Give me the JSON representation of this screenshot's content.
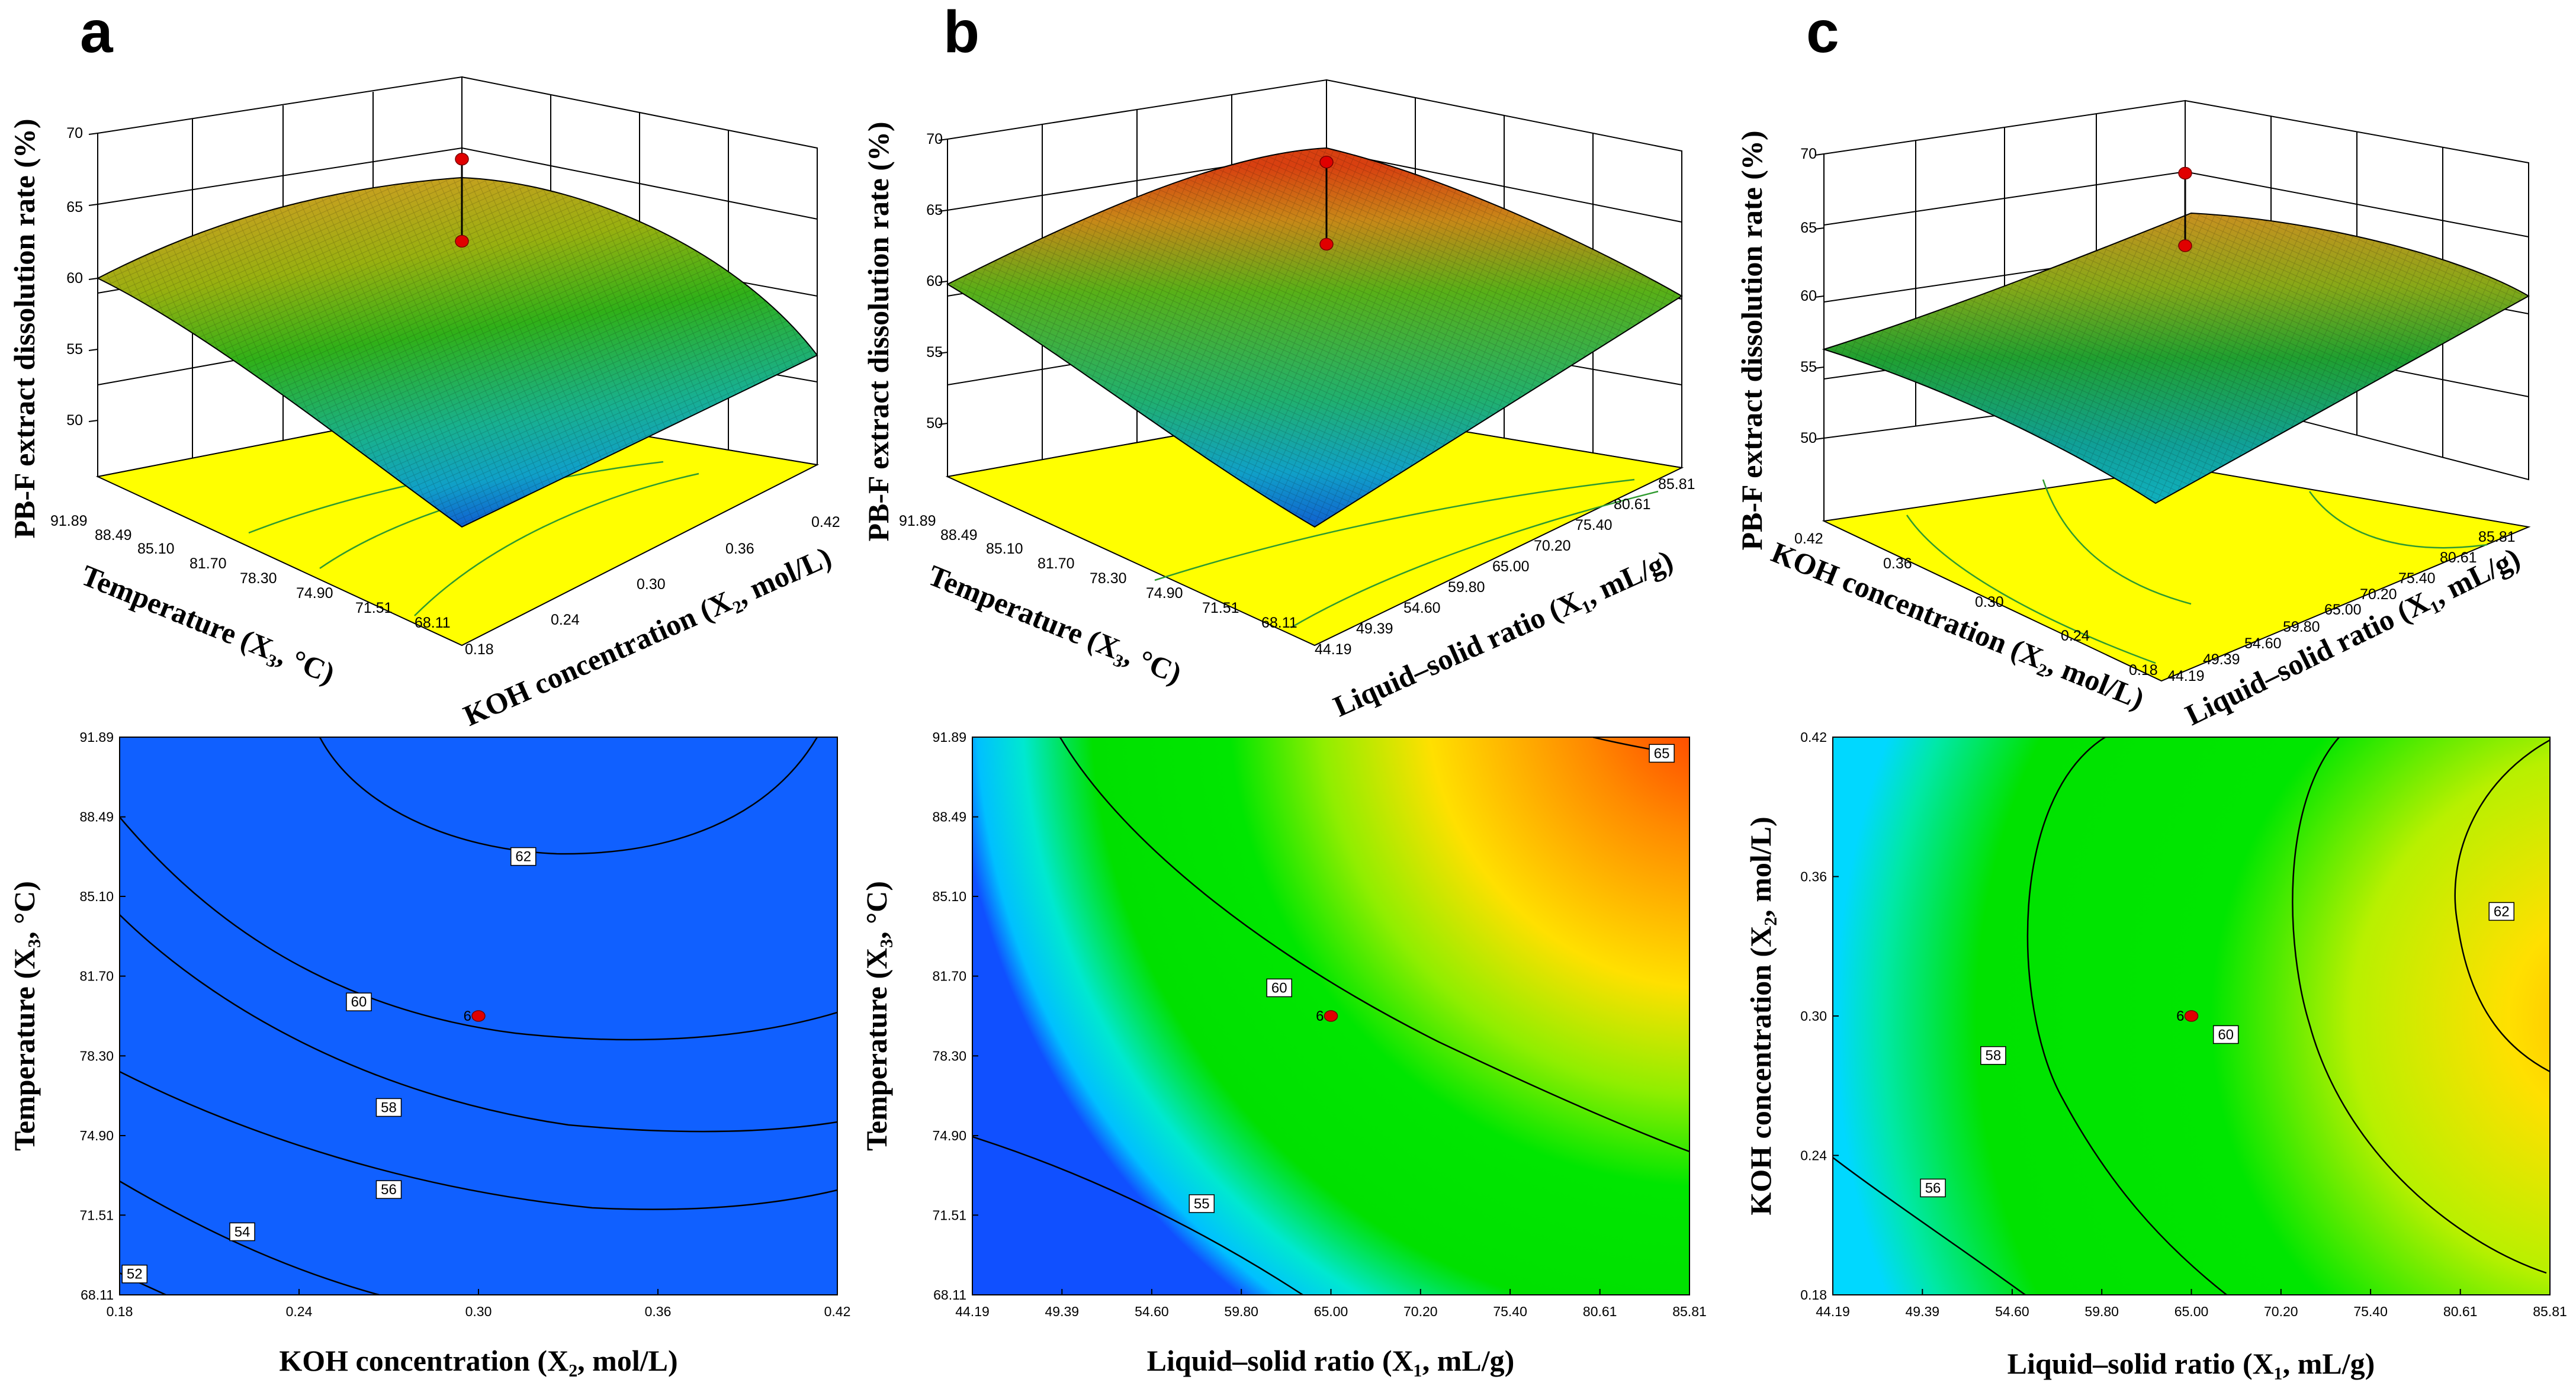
{
  "panels": [
    {
      "letter": "a",
      "surface": {
        "zlabel": "PB-F extract dissolution rate (%)",
        "ylabel": "Temperature (X₃, °C)",
        "xlabel": "KOH concentration (X₂, mol/L)",
        "zticks": [
          "50",
          "55",
          "60",
          "65",
          "70"
        ],
        "yticks": [
          "91.89",
          "88.49",
          "85.10",
          "81.70",
          "78.30",
          "74.90",
          "71.51",
          "68.11"
        ],
        "xticks": [
          "0.18",
          "0.24",
          "0.30",
          "0.36",
          "0.42"
        ]
      }
    },
    {
      "letter": "b",
      "surface": {
        "zlabel": "PB-F extract dissolution rate (%)",
        "ylabel": "Temperature (X₃, °C)",
        "xlabel": "Liquid–solid ratio (X₁, mL/g)",
        "zticks": [
          "50",
          "55",
          "60",
          "65",
          "70"
        ],
        "yticks": [
          "91.89",
          "88.49",
          "85.10",
          "81.70",
          "78.30",
          "74.90",
          "71.51",
          "68.11"
        ],
        "xticks": [
          "44.19",
          "49.39",
          "54.60",
          "59.80",
          "65.00",
          "70.20",
          "75.40",
          "80.61",
          "85.81"
        ]
      }
    },
    {
      "letter": "c",
      "surface": {
        "zlabel": "PB-F extract dissolution rate (%)",
        "ylabel": "KOH concentration (X₂, mol/L)",
        "xlabel": "Liquid–solid ratio (X₁, mL/g)",
        "zticks": [
          "50",
          "55",
          "60",
          "65",
          "70"
        ],
        "yticks": [
          "0.42",
          "0.36",
          "0.30",
          "0.24",
          "0.18"
        ],
        "xticks": [
          "44.19",
          "49.39",
          "54.60",
          "59.80",
          "65.00",
          "70.20",
          "75.40",
          "80.61",
          "85.81"
        ]
      }
    }
  ],
  "chart_data": [
    {
      "type": "contour",
      "panel": "a",
      "xlabel": "KOH concentration (X₂, mol/L)",
      "ylabel": "Temperature (X₃, °C)",
      "xlim": [
        0.18,
        0.42
      ],
      "ylim": [
        68.11,
        91.89
      ],
      "xticks": [
        "0.18",
        "0.24",
        "0.30",
        "0.36",
        "0.42"
      ],
      "yticks": [
        "68.11",
        "71.51",
        "74.90",
        "78.30",
        "81.70",
        "85.10",
        "88.49",
        "91.89"
      ],
      "contour_levels": [
        52,
        54,
        56,
        58,
        60,
        62
      ],
      "contour_labels": [
        {
          "text": "52",
          "x": 0.185,
          "y": 69.0
        },
        {
          "text": "54",
          "x": 0.221,
          "y": 70.8
        },
        {
          "text": "56",
          "x": 0.27,
          "y": 72.6
        },
        {
          "text": "58",
          "x": 0.27,
          "y": 76.1
        },
        {
          "text": "60",
          "x": 0.26,
          "y": 80.6
        },
        {
          "text": "62",
          "x": 0.315,
          "y": 86.8
        }
      ],
      "design_point": {
        "x": 0.3,
        "y": 80.0,
        "label": "6"
      },
      "stem": {
        "x": 0.3,
        "y": 80.0,
        "z_low": 60.0,
        "z_high": 65.0
      },
      "surface_zlim": [
        50,
        70
      ],
      "color_scale": "blue-cyan-green-yellow-red"
    },
    {
      "type": "contour",
      "panel": "b",
      "xlabel": "Liquid–solid ratio (X₁, mL/g)",
      "ylabel": "Temperature (X₃, °C)",
      "xlim": [
        44.19,
        85.81
      ],
      "ylim": [
        68.11,
        91.89
      ],
      "xticks": [
        "44.19",
        "49.39",
        "54.60",
        "59.80",
        "65.00",
        "70.20",
        "75.40",
        "80.61",
        "85.81"
      ],
      "yticks": [
        "68.11",
        "71.51",
        "74.90",
        "78.30",
        "81.70",
        "85.10",
        "88.49",
        "91.89"
      ],
      "contour_levels": [
        55,
        60,
        65
      ],
      "contour_labels": [
        {
          "text": "55",
          "x": 57.5,
          "y": 72.0
        },
        {
          "text": "60",
          "x": 62.0,
          "y": 81.2
        },
        {
          "text": "65",
          "x": 84.2,
          "y": 91.2
        }
      ],
      "design_point": {
        "x": 65.0,
        "y": 80.0,
        "label": "6"
      },
      "stem": {
        "x": 65.0,
        "y": 80.0,
        "z_low": 60.0,
        "z_high": 65.0
      },
      "surface_zlim": [
        50,
        70
      ],
      "color_scale": "blue-cyan-green-yellow-red"
    },
    {
      "type": "contour",
      "panel": "c",
      "xlabel": "Liquid–solid ratio (X₁, mL/g)",
      "ylabel": "KOH concentration (X₂, mol/L)",
      "xlim": [
        44.19,
        85.81
      ],
      "ylim": [
        0.18,
        0.42
      ],
      "xticks": [
        "44.19",
        "49.39",
        "54.60",
        "59.80",
        "65.00",
        "70.20",
        "75.40",
        "80.61",
        "85.81"
      ],
      "yticks": [
        "0.18",
        "0.24",
        "0.30",
        "0.36",
        "0.42"
      ],
      "contour_levels": [
        56,
        58,
        60,
        62
      ],
      "contour_labels": [
        {
          "text": "56",
          "x": 50.0,
          "y": 0.226
        },
        {
          "text": "58",
          "x": 53.5,
          "y": 0.283
        },
        {
          "text": "60",
          "x": 67.0,
          "y": 0.292
        },
        {
          "text": "62",
          "x": 83.0,
          "y": 0.345
        }
      ],
      "design_point": {
        "x": 65.0,
        "y": 0.3,
        "label": "6"
      },
      "stem": {
        "x": 65.0,
        "y": 0.3,
        "z_low": 60.0,
        "z_high": 65.0
      },
      "surface_zlim": [
        50,
        70
      ],
      "color_scale": "blue-cyan-green-yellow-red"
    }
  ]
}
